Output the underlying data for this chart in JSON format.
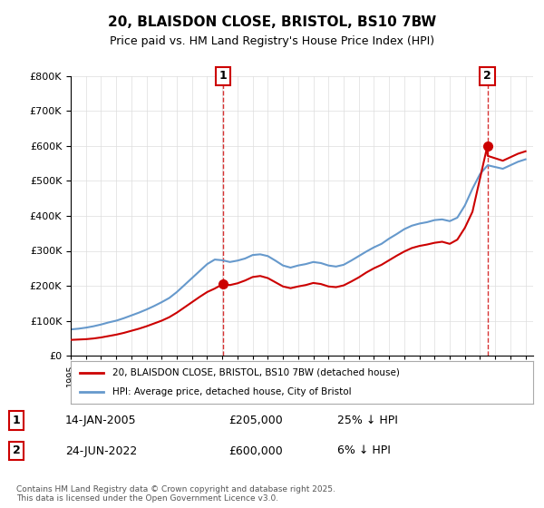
{
  "title": "20, BLAISDON CLOSE, BRISTOL, BS10 7BW",
  "subtitle": "Price paid vs. HM Land Registry's House Price Index (HPI)",
  "legend_line1": "20, BLAISDON CLOSE, BRISTOL, BS10 7BW (detached house)",
  "legend_line2": "HPI: Average price, detached house, City of Bristol",
  "sale1_label": "1",
  "sale1_date": "14-JAN-2005",
  "sale1_price": "£205,000",
  "sale1_hpi": "25% ↓ HPI",
  "sale1_year": 2005.04,
  "sale1_value": 205000,
  "sale2_label": "2",
  "sale2_date": "24-JUN-2022",
  "sale2_price": "£600,000",
  "sale2_hpi": "6% ↓ HPI",
  "sale2_year": 2022.48,
  "sale2_value": 600000,
  "ylim": [
    0,
    800000
  ],
  "xlim_start": 1995.0,
  "xlim_end": 2025.5,
  "red_color": "#cc0000",
  "blue_color": "#6699cc",
  "background_color": "#f8f8f8",
  "footer": "Contains HM Land Registry data © Crown copyright and database right 2025.\nThis data is licensed under the Open Government Licence v3.0.",
  "hpi_years": [
    1995.0,
    1995.5,
    1996.0,
    1996.5,
    1997.0,
    1997.5,
    1998.0,
    1998.5,
    1999.0,
    1999.5,
    2000.0,
    2000.5,
    2001.0,
    2001.5,
    2002.0,
    2002.5,
    2003.0,
    2003.5,
    2004.0,
    2004.5,
    2005.0,
    2005.5,
    2006.0,
    2006.5,
    2007.0,
    2007.5,
    2008.0,
    2008.5,
    2009.0,
    2009.5,
    2010.0,
    2010.5,
    2011.0,
    2011.5,
    2012.0,
    2012.5,
    2013.0,
    2013.5,
    2014.0,
    2014.5,
    2015.0,
    2015.5,
    2016.0,
    2016.5,
    2017.0,
    2017.5,
    2018.0,
    2018.5,
    2019.0,
    2019.5,
    2020.0,
    2020.5,
    2021.0,
    2021.5,
    2022.0,
    2022.5,
    2023.0,
    2023.5,
    2024.0,
    2024.5,
    2025.0
  ],
  "hpi_values": [
    75000,
    77000,
    80000,
    84000,
    89000,
    95000,
    100000,
    107000,
    115000,
    123000,
    132000,
    142000,
    153000,
    165000,
    182000,
    202000,
    222000,
    242000,
    262000,
    275000,
    273000,
    268000,
    272000,
    278000,
    288000,
    290000,
    285000,
    272000,
    258000,
    252000,
    258000,
    262000,
    268000,
    265000,
    258000,
    255000,
    260000,
    272000,
    285000,
    298000,
    310000,
    320000,
    335000,
    348000,
    362000,
    372000,
    378000,
    382000,
    388000,
    390000,
    385000,
    395000,
    430000,
    478000,
    520000,
    545000,
    540000,
    535000,
    545000,
    555000,
    562000
  ],
  "red_years": [
    1995.0,
    1995.5,
    1996.0,
    1996.5,
    1997.0,
    1997.5,
    1998.0,
    1998.5,
    1999.0,
    1999.5,
    2000.0,
    2000.5,
    2001.0,
    2001.5,
    2002.0,
    2002.5,
    2003.0,
    2003.5,
    2004.0,
    2004.5,
    2005.04,
    2005.5,
    2006.0,
    2006.5,
    2007.0,
    2007.5,
    2008.0,
    2008.5,
    2009.0,
    2009.5,
    2010.0,
    2010.5,
    2011.0,
    2011.5,
    2012.0,
    2012.5,
    2013.0,
    2013.5,
    2014.0,
    2014.5,
    2015.0,
    2015.5,
    2016.0,
    2016.5,
    2017.0,
    2017.5,
    2018.0,
    2018.5,
    2019.0,
    2019.5,
    2020.0,
    2020.5,
    2021.0,
    2021.5,
    2022.48,
    2022.5,
    2023.0,
    2023.5,
    2024.0,
    2024.5,
    2025.0
  ],
  "red_values": [
    45000,
    46000,
    47000,
    49000,
    52000,
    56000,
    60000,
    65000,
    71000,
    77000,
    84000,
    92000,
    100000,
    110000,
    123000,
    138000,
    153000,
    168000,
    182000,
    192000,
    205000,
    202000,
    207000,
    215000,
    225000,
    228000,
    222000,
    210000,
    198000,
    193000,
    198000,
    202000,
    208000,
    205000,
    198000,
    196000,
    201000,
    212000,
    224000,
    238000,
    250000,
    260000,
    273000,
    286000,
    298000,
    308000,
    314000,
    318000,
    323000,
    326000,
    320000,
    332000,
    366000,
    412000,
    600000,
    572000,
    565000,
    558000,
    568000,
    578000,
    585000
  ]
}
